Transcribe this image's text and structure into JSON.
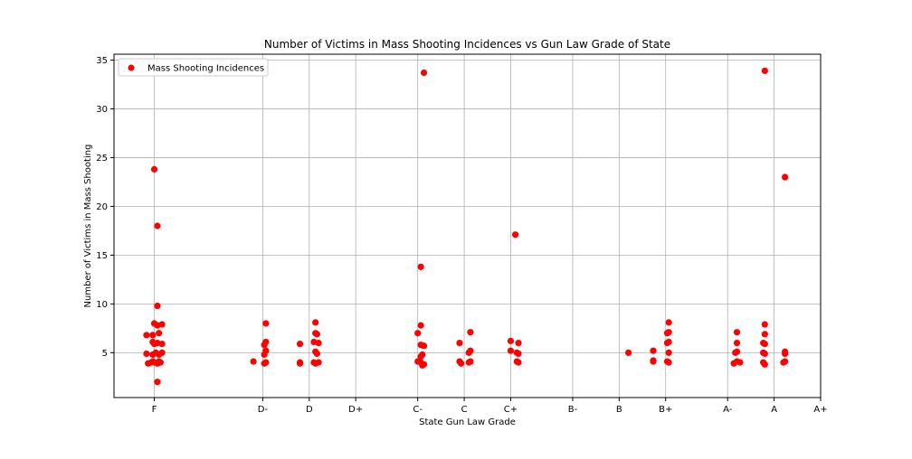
{
  "chart_data": {
    "type": "scatter",
    "title": "Number of Victims in Mass Shooting Incidences vs Gun Law Grade of State",
    "xlabel": "State Gun Law Grade",
    "ylabel": "Number of Victims in Mass Shooting",
    "x_tick_labels": [
      "F",
      "D-",
      "D",
      "D+",
      "C-",
      "C",
      "C+",
      "B-",
      "B",
      "B+",
      "A-",
      "A",
      "A+"
    ],
    "x_tick_values": [
      0,
      3.5,
      5,
      6.5,
      8.5,
      10,
      11.5,
      13.5,
      15,
      16.5,
      18.5,
      20,
      21.5
    ],
    "xlim": [
      -1.3,
      21.5
    ],
    "y_ticks": [
      5,
      10,
      15,
      20,
      25,
      30,
      35
    ],
    "ylim": [
      0.4,
      35.6
    ],
    "grid": true,
    "legend_position": "upper left",
    "colors": {
      "points": "#ff0000",
      "grid": "#b0b0b0",
      "axes": "#000000"
    },
    "series": [
      {
        "name": "Mass Shooting Incidences",
        "points": [
          [
            0.0,
            23.8
          ],
          [
            0.1,
            18.0
          ],
          [
            0.1,
            9.8
          ],
          [
            0.1,
            2.0
          ],
          [
            -0.25,
            6.8
          ],
          [
            0.0,
            8.0
          ],
          [
            0.1,
            7.8
          ],
          [
            0.25,
            7.9
          ],
          [
            -0.05,
            6.8
          ],
          [
            0.15,
            7.0
          ],
          [
            0.0,
            5.9
          ],
          [
            0.1,
            6.0
          ],
          [
            0.25,
            5.9
          ],
          [
            -0.05,
            6.1
          ],
          [
            -0.25,
            4.9
          ],
          [
            -0.05,
            4.8
          ],
          [
            0.05,
            5.0
          ],
          [
            0.15,
            4.8
          ],
          [
            0.25,
            5.0
          ],
          [
            -0.2,
            3.9
          ],
          [
            -0.1,
            4.0
          ],
          [
            0.0,
            4.0
          ],
          [
            0.1,
            3.9
          ],
          [
            0.2,
            4.0
          ],
          [
            -0.05,
            4.1
          ],
          [
            0.15,
            4.1
          ],
          [
            3.2,
            4.1
          ],
          [
            3.6,
            8.0
          ],
          [
            3.6,
            6.1
          ],
          [
            3.55,
            5.8
          ],
          [
            3.6,
            5.2
          ],
          [
            3.55,
            4.8
          ],
          [
            3.6,
            4.0
          ],
          [
            3.55,
            3.9
          ],
          [
            4.7,
            5.9
          ],
          [
            4.7,
            4.0
          ],
          [
            4.7,
            3.9
          ],
          [
            5.2,
            8.1
          ],
          [
            5.2,
            7.0
          ],
          [
            5.25,
            6.9
          ],
          [
            5.15,
            6.1
          ],
          [
            5.3,
            6.0
          ],
          [
            5.2,
            5.1
          ],
          [
            5.25,
            4.9
          ],
          [
            5.15,
            4.0
          ],
          [
            5.3,
            4.0
          ],
          [
            5.2,
            3.9
          ],
          [
            8.5,
            7.0
          ],
          [
            8.6,
            7.8
          ],
          [
            8.6,
            13.8
          ],
          [
            8.7,
            33.7
          ],
          [
            8.6,
            5.8
          ],
          [
            8.7,
            5.7
          ],
          [
            8.65,
            4.8
          ],
          [
            8.6,
            4.6
          ],
          [
            8.5,
            4.1
          ],
          [
            8.6,
            4.0
          ],
          [
            8.7,
            3.8
          ],
          [
            8.65,
            3.7
          ],
          [
            9.85,
            6.0
          ],
          [
            10.2,
            7.1
          ],
          [
            10.2,
            5.2
          ],
          [
            10.15,
            5.0
          ],
          [
            9.85,
            4.1
          ],
          [
            9.9,
            3.9
          ],
          [
            10.2,
            4.1
          ],
          [
            10.15,
            4.0
          ],
          [
            11.5,
            6.2
          ],
          [
            11.75,
            6.0
          ],
          [
            11.5,
            5.2
          ],
          [
            11.7,
            5.0
          ],
          [
            11.75,
            4.9
          ],
          [
            11.7,
            4.1
          ],
          [
            11.75,
            4.0
          ],
          [
            11.65,
            17.1
          ],
          [
            15.3,
            5.0
          ],
          [
            16.1,
            5.2
          ],
          [
            16.1,
            4.2
          ],
          [
            16.1,
            4.1
          ],
          [
            16.6,
            8.1
          ],
          [
            16.6,
            7.1
          ],
          [
            16.55,
            7.0
          ],
          [
            16.6,
            6.1
          ],
          [
            16.55,
            6.0
          ],
          [
            16.6,
            5.0
          ],
          [
            16.55,
            4.1
          ],
          [
            16.6,
            4.0
          ],
          [
            18.8,
            7.1
          ],
          [
            18.8,
            6.0
          ],
          [
            18.8,
            5.1
          ],
          [
            18.75,
            5.0
          ],
          [
            18.8,
            4.1
          ],
          [
            18.9,
            4.0
          ],
          [
            18.7,
            3.9
          ],
          [
            19.7,
            33.9
          ],
          [
            19.7,
            7.9
          ],
          [
            19.7,
            6.9
          ],
          [
            19.65,
            6.0
          ],
          [
            19.7,
            5.9
          ],
          [
            19.65,
            5.0
          ],
          [
            19.7,
            4.9
          ],
          [
            19.65,
            4.0
          ],
          [
            19.7,
            3.8
          ],
          [
            20.35,
            23.0
          ],
          [
            20.35,
            5.1
          ],
          [
            20.35,
            4.9
          ],
          [
            20.35,
            4.1
          ],
          [
            20.3,
            4.0
          ]
        ]
      }
    ]
  }
}
